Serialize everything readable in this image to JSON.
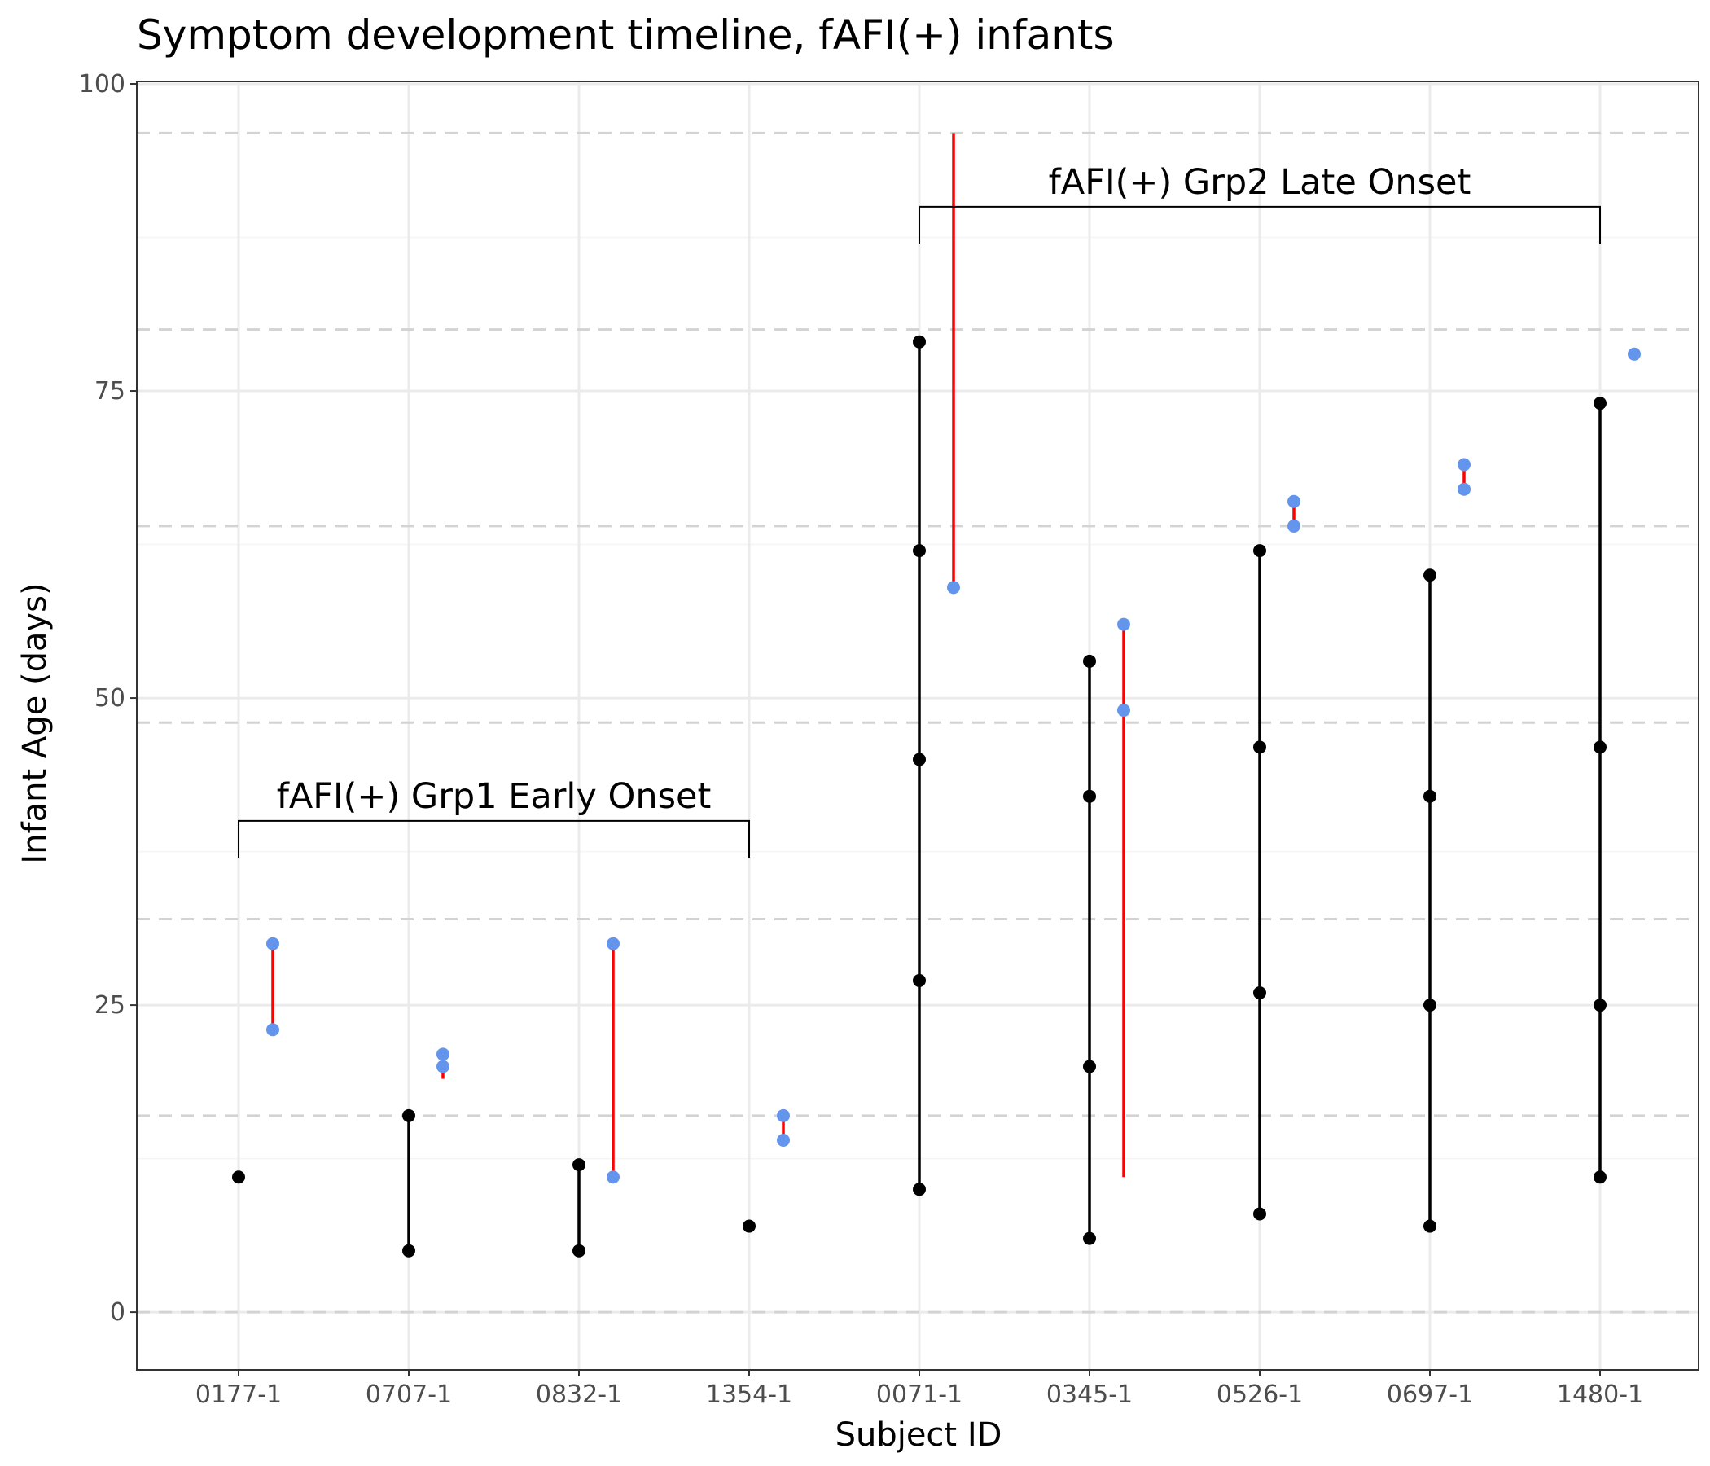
{
  "chart_data": {
    "type": "scatter",
    "title": "Symptom development timeline, fAFI(+) infants",
    "xlabel": "Subject ID",
    "ylabel": "Infant Age (days)",
    "categories": [
      "0177-1",
      "0707-1",
      "0832-1",
      "1354-1",
      "0071-1",
      "0345-1",
      "0526-1",
      "0697-1",
      "1480-1"
    ],
    "ylim": [
      -4.7,
      100.2
    ],
    "yticks": [
      0,
      25,
      50,
      75,
      100
    ],
    "ytick_labels": [
      "0",
      "25",
      "50",
      "75",
      "100"
    ],
    "dashed_reference_lines": [
      0,
      16,
      32,
      48,
      64,
      80,
      96
    ],
    "grid": true,
    "series": [
      {
        "color": "#000000",
        "points": [
          {
            "x": "0177-1",
            "y": [
              11
            ]
          },
          {
            "x": "0707-1",
            "y": [
              5,
              16
            ]
          },
          {
            "x": "0832-1",
            "y": [
              5,
              12
            ]
          },
          {
            "x": "1354-1",
            "y": [
              7
            ]
          },
          {
            "x": "0071-1",
            "y": [
              10,
              27,
              45,
              62,
              79
            ]
          },
          {
            "x": "0345-1",
            "y": [
              6,
              20,
              42,
              53
            ]
          },
          {
            "x": "0526-1",
            "y": [
              8,
              26,
              46,
              62
            ]
          },
          {
            "x": "0697-1",
            "y": [
              7,
              25,
              42,
              60
            ]
          },
          {
            "x": "1480-1",
            "y": [
              11,
              25,
              46,
              74
            ]
          }
        ]
      },
      {
        "color": "#6495ed",
        "line_color": "#ff0000",
        "points": [
          {
            "x": "0177-1",
            "y": [
              23,
              30
            ],
            "line": [
              23,
              30
            ]
          },
          {
            "x": "0707-1",
            "y": [
              20,
              21
            ],
            "line": [
              19,
              21
            ]
          },
          {
            "x": "0832-1",
            "y": [
              11,
              30
            ],
            "line": [
              11,
              30
            ]
          },
          {
            "x": "1354-1",
            "y": [
              14,
              16
            ],
            "line": [
              14,
              16
            ]
          },
          {
            "x": "0071-1",
            "y": [
              59
            ],
            "line": [
              59,
              96
            ]
          },
          {
            "x": "0345-1",
            "y": [
              49,
              56
            ],
            "line": [
              11,
              56
            ]
          },
          {
            "x": "0526-1",
            "y": [
              64,
              66
            ],
            "line": [
              64,
              66
            ]
          },
          {
            "x": "0697-1",
            "y": [
              67,
              69
            ],
            "line": [
              67,
              69
            ]
          },
          {
            "x": "1480-1",
            "y": [
              78
            ]
          }
        ]
      }
    ],
    "annotations": [
      {
        "text": "fAFI(+) Grp1 Early Onset",
        "from": "0177-1",
        "to": "1354-1",
        "y": 40,
        "tick_bottom": 37
      },
      {
        "text": "fAFI(+) Grp2 Late Onset",
        "from": "0071-1",
        "to": "1480-1",
        "y": 90,
        "tick_bottom": 87
      }
    ],
    "colors": {
      "primary_points": "#000000",
      "secondary_points": "#6495ed",
      "secondary_lines": "#ff0000",
      "grid_major": "#ebebeb",
      "grid_minor": "#f5f5f5",
      "dashed_reference": "#d3d3d3",
      "panel_border": "#333333"
    }
  }
}
